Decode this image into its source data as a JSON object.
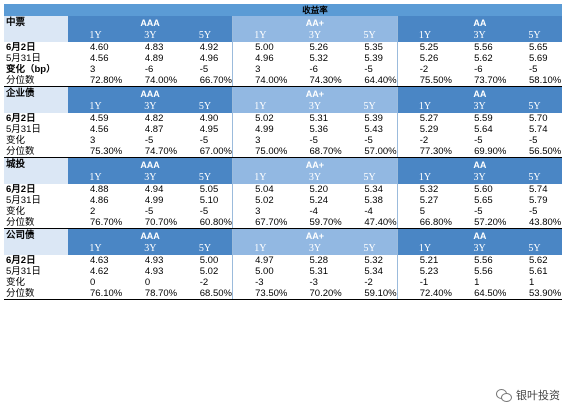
{
  "title": "收益率",
  "grades": [
    "AAA",
    "AA+",
    "AA"
  ],
  "terms": [
    "1Y",
    "3Y",
    "5Y"
  ],
  "row_labels": {
    "d1": "6月2日",
    "d2": "5月31日",
    "chg_bp": "变化（bp）",
    "chg": "变化",
    "pct": "分位数"
  },
  "sections": [
    {
      "name": "中票",
      "r1": [
        "4.60",
        "4.83",
        "4.92",
        "5.00",
        "5.26",
        "5.35",
        "5.25",
        "5.56",
        "5.65"
      ],
      "r2": [
        "4.56",
        "4.89",
        "4.96",
        "4.96",
        "5.32",
        "5.39",
        "5.26",
        "5.62",
        "5.69"
      ],
      "r3": [
        "3",
        "-6",
        "-5",
        "3",
        "-6",
        "-5",
        "-2",
        "-6",
        "-5"
      ],
      "r4": [
        "72.80%",
        "74.00%",
        "66.70%",
        "74.00%",
        "74.30%",
        "64.40%",
        "75.50%",
        "73.70%",
        "58.10%"
      ]
    },
    {
      "name": "企业债",
      "r1": [
        "4.59",
        "4.82",
        "4.90",
        "5.02",
        "5.31",
        "5.39",
        "5.27",
        "5.59",
        "5.70"
      ],
      "r2": [
        "4.56",
        "4.87",
        "4.95",
        "4.99",
        "5.36",
        "5.43",
        "5.29",
        "5.64",
        "5.74"
      ],
      "r3": [
        "3",
        "-5",
        "-5",
        "3",
        "-5",
        "-5",
        "-2",
        "-5",
        "-5"
      ],
      "r4": [
        "75.30%",
        "74.70%",
        "67.00%",
        "75.00%",
        "68.70%",
        "57.00%",
        "77.30%",
        "69.90%",
        "56.50%"
      ]
    },
    {
      "name": "城投",
      "r1": [
        "4.88",
        "4.94",
        "5.05",
        "5.04",
        "5.20",
        "5.34",
        "5.32",
        "5.60",
        "5.74"
      ],
      "r2": [
        "4.86",
        "4.99",
        "5.10",
        "5.02",
        "5.24",
        "5.38",
        "5.27",
        "5.65",
        "5.79"
      ],
      "r3": [
        "2",
        "-5",
        "-5",
        "3",
        "-4",
        "-4",
        "5",
        "-5",
        "-5"
      ],
      "r4": [
        "76.70%",
        "70.70%",
        "60.80%",
        "67.70%",
        "59.70%",
        "47.40%",
        "66.80%",
        "57.20%",
        "43.80%"
      ]
    },
    {
      "name": "公司债",
      "r1": [
        "4.63",
        "4.93",
        "5.00",
        "4.97",
        "5.28",
        "5.32",
        "5.21",
        "5.56",
        "5.62"
      ],
      "r2": [
        "4.62",
        "4.93",
        "5.02",
        "5.00",
        "5.31",
        "5.34",
        "5.23",
        "5.56",
        "5.61"
      ],
      "r3": [
        "0",
        "0",
        "-2",
        "-3",
        "-3",
        "-2",
        "-1",
        "1",
        "1"
      ],
      "r4": [
        "76.10%",
        "78.70%",
        "68.50%",
        "73.50%",
        "70.20%",
        "59.10%",
        "72.40%",
        "64.50%",
        "53.90%"
      ]
    }
  ],
  "footer": {
    "brand": "银叶投资",
    "icon": "wechat-icon"
  }
}
